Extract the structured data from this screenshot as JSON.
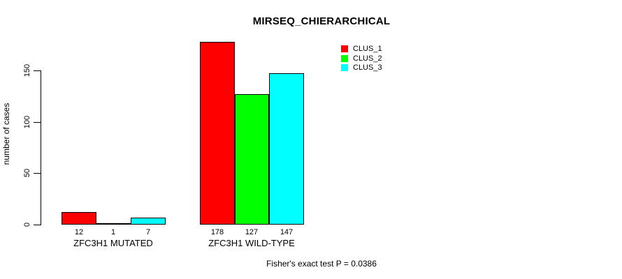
{
  "chart_data": {
    "type": "bar",
    "title": "MIRSEQ_CHIERARCHICAL",
    "ylabel": "number of cases",
    "xlabel": "",
    "categories": [
      "ZFC3H1 MUTATED",
      "ZFC3H1 WILD-TYPE"
    ],
    "series": [
      {
        "name": "CLUS_1",
        "color": "#ff0000",
        "values": [
          12,
          178
        ]
      },
      {
        "name": "CLUS_2",
        "color": "#00ff00",
        "values": [
          1,
          127
        ]
      },
      {
        "name": "CLUS_3",
        "color": "#00ffff",
        "values": [
          7,
          147
        ]
      }
    ],
    "bar_value_labels": [
      [
        "12",
        "1",
        "7"
      ],
      [
        "178",
        "127",
        "147"
      ]
    ],
    "yticks": [
      0,
      50,
      100,
      150
    ],
    "ylim": [
      0,
      178
    ],
    "grid": false,
    "legend_position": "top-right",
    "legend_entries": [
      "CLUS_1",
      "CLUS_2",
      "CLUS_3"
    ],
    "annotation": "Fisher's exact test P = 0.0386",
    "background_color": "#ffffff",
    "axis_color": "#000000"
  }
}
